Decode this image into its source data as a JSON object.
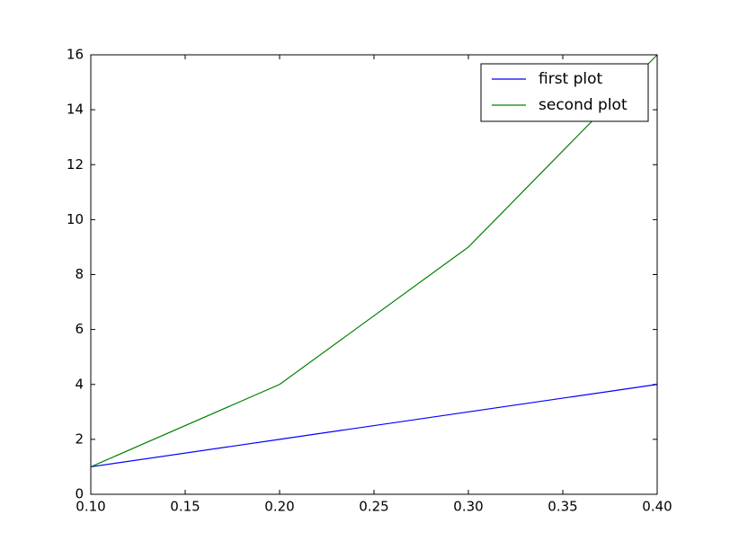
{
  "chart_data": {
    "type": "line",
    "x": [
      0.1,
      0.2,
      0.3,
      0.4
    ],
    "series": [
      {
        "name": "first plot",
        "color": "#0000ff",
        "values": [
          1,
          2,
          3,
          4
        ]
      },
      {
        "name": "second plot",
        "color": "#008000",
        "values": [
          1,
          4,
          9,
          16
        ]
      }
    ],
    "xlim": [
      0.1,
      0.4
    ],
    "xticks": [
      {
        "value": 0.1,
        "label": "0.10"
      },
      {
        "value": 0.15,
        "label": "0.15"
      },
      {
        "value": 0.2,
        "label": "0.20"
      },
      {
        "value": 0.25,
        "label": "0.25"
      },
      {
        "value": 0.3,
        "label": "0.30"
      },
      {
        "value": 0.35,
        "label": "0.35"
      },
      {
        "value": 0.4,
        "label": "0.40"
      }
    ],
    "ylim": [
      0,
      16
    ],
    "yticks": [
      0,
      2,
      4,
      6,
      8,
      10,
      12,
      14,
      16
    ],
    "legend": "upper right",
    "grid": false
  }
}
